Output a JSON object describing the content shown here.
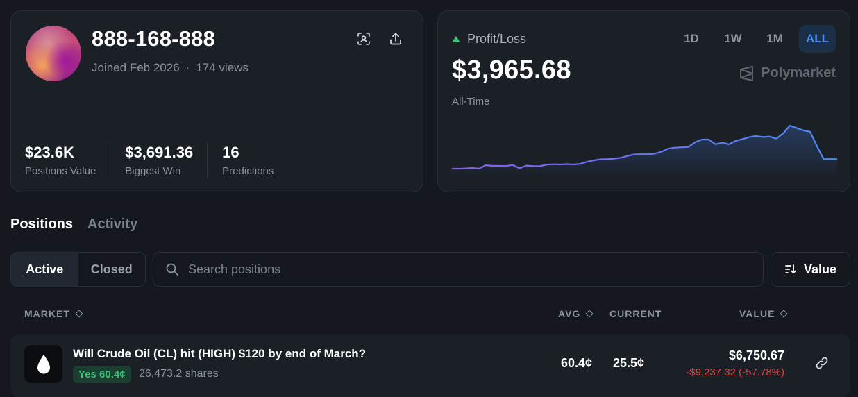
{
  "profile": {
    "username": "888-168-888",
    "joined": "Joined Feb 2026",
    "separator": "·",
    "views": "174 views",
    "stats": [
      {
        "value": "$23.6K",
        "label": "Positions Value"
      },
      {
        "value": "$3,691.36",
        "label": "Biggest Win"
      },
      {
        "value": "16",
        "label": "Predictions"
      }
    ],
    "icons": [
      "scan-icon",
      "share-icon"
    ]
  },
  "pnl": {
    "label": "Profit/Loss",
    "amount": "$3,965.68",
    "period": "All-Time",
    "ranges": [
      "1D",
      "1W",
      "1M",
      "ALL"
    ],
    "active_range": "ALL",
    "brand": "Polymarket",
    "colors": {
      "line_start": "#8a5cf0",
      "line_end": "#4a8cf0",
      "up": "#3cbf76"
    }
  },
  "chart_data": {
    "type": "area",
    "title": "",
    "xlabel": "",
    "ylabel": "",
    "series": [
      {
        "values": [
          0,
          0,
          0.2,
          0.8,
          0,
          4,
          3.2,
          3.2,
          3,
          4.2,
          0.5,
          3.5,
          3,
          2.8,
          4.6,
          5,
          4.8,
          5.2,
          4.8,
          5.5,
          8,
          9.5,
          10.8,
          11,
          11.5,
          12.5,
          14.8,
          16.4,
          16.6,
          16.6,
          17.2,
          19.5,
          23,
          24.2,
          24.6,
          25,
          30.5,
          33.5,
          33.5,
          28,
          30,
          28,
          32,
          34,
          36.4,
          37.6,
          36.4,
          37,
          34.5,
          40.5,
          49.5,
          46.8,
          44,
          42.5,
          26,
          11,
          11,
          11
        ]
      }
    ]
  },
  "tabs": {
    "items": [
      "Positions",
      "Activity"
    ],
    "active": "Positions"
  },
  "filter": {
    "active_label": "Active",
    "closed_label": "Closed"
  },
  "search": {
    "placeholder": "Search positions",
    "value": ""
  },
  "sort": {
    "label": "Value"
  },
  "table": {
    "headers": {
      "market": "MARKET",
      "avg": "AVG",
      "current": "CURRENT",
      "value": "VALUE"
    },
    "rows": [
      {
        "title": "Will Crude Oil (CL) hit (HIGH) $120 by end of March?",
        "outcome": "Yes 60.4¢",
        "shares": "26,473.2 shares",
        "avg": "60.4¢",
        "current": "25.5¢",
        "value": "$6,750.67",
        "pnl": "-$9,237.32 (-57.78%)",
        "icon": "oil-drop-icon"
      }
    ]
  },
  "colors": {
    "positive": "#3cbf76",
    "negative": "#e0423c",
    "accent": "#4a8cf0"
  }
}
